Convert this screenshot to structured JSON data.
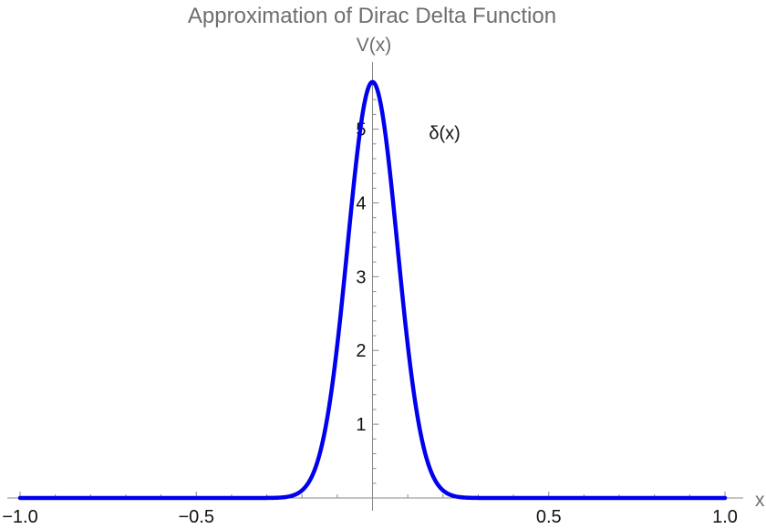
{
  "chart_data": {
    "type": "line",
    "title": "Approximation of Dirac Delta Function",
    "xlabel": "x",
    "ylabel": "V(x)",
    "xlim": [
      -1.0,
      1.0
    ],
    "ylim": [
      0,
      5.7
    ],
    "x_ticks": [
      -1.0,
      -0.5,
      0.5,
      1.0
    ],
    "x_tick_labels": [
      "−1.0",
      "−0.5",
      "0.5",
      "1.0"
    ],
    "y_ticks": [
      1,
      2,
      3,
      4,
      5
    ],
    "y_tick_labels": [
      "1",
      "2",
      "3",
      "4",
      "5"
    ],
    "grid": false,
    "annotation": {
      "text": "δ(x)",
      "x": 0.16,
      "y": 4.95
    },
    "series": [
      {
        "function": "gaussian",
        "peak": 5.64,
        "sigma": 0.0707,
        "x": [
          -1.0,
          -0.5,
          -0.3,
          -0.25,
          -0.2,
          -0.15,
          -0.1,
          -0.05,
          0.0,
          0.05,
          0.1,
          0.15,
          0.2,
          0.25,
          0.3,
          0.5,
          1.0
        ],
        "y": [
          0.0,
          0.0,
          0.0,
          0.02,
          0.1,
          0.59,
          2.08,
          4.39,
          5.64,
          4.39,
          2.08,
          0.59,
          0.1,
          0.02,
          0.0,
          0.0,
          0.0
        ],
        "color": "#0000ee"
      }
    ]
  }
}
